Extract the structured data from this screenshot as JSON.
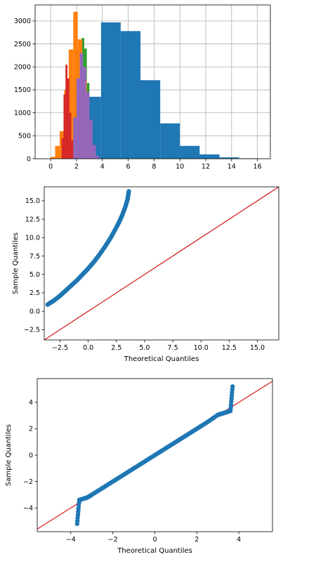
{
  "chart_data": [
    {
      "type": "bar",
      "title": "",
      "xlabel": "",
      "ylabel": "",
      "xlim": [
        -1.2,
        17.0
      ],
      "ylim": [
        0,
        3350
      ],
      "grid": true,
      "xticks": [
        0,
        2,
        4,
        6,
        8,
        10,
        12,
        14,
        16
      ],
      "xtick_labels": [
        "0",
        "2",
        "4",
        "6",
        "8",
        "10",
        "12",
        "14",
        "16"
      ],
      "yticks": [
        0,
        500,
        1000,
        1500,
        2000,
        2500,
        3000
      ],
      "ytick_labels": [
        "0",
        "500",
        "1000",
        "1500",
        "2000",
        "2500",
        "3000"
      ],
      "series": [
        {
          "color": "#1f77b4",
          "bins": [
            {
              "x0": 0.85,
              "x1": 2.37,
              "value": 160
            },
            {
              "x0": 2.37,
              "x1": 3.9,
              "value": 1350
            },
            {
              "x0": 3.9,
              "x1": 5.42,
              "value": 2970
            },
            {
              "x0": 5.42,
              "x1": 6.95,
              "value": 2780
            },
            {
              "x0": 6.95,
              "x1": 8.48,
              "value": 1710
            },
            {
              "x0": 8.48,
              "x1": 10.0,
              "value": 770
            },
            {
              "x0": 10.0,
              "x1": 11.53,
              "value": 280
            },
            {
              "x0": 11.53,
              "x1": 13.06,
              "value": 95
            },
            {
              "x0": 13.06,
              "x1": 14.58,
              "value": 30
            },
            {
              "x0": 14.58,
              "x1": 16.11,
              "value": 8
            }
          ]
        },
        {
          "color": "#2ca02c",
          "bins": [
            {
              "x0": 1.4,
              "x1": 1.6,
              "value": 150
            },
            {
              "x0": 1.6,
              "x1": 1.8,
              "value": 900
            },
            {
              "x0": 1.8,
              "x1": 2.0,
              "value": 1700
            },
            {
              "x0": 2.0,
              "x1": 2.2,
              "value": 2350
            },
            {
              "x0": 2.2,
              "x1": 2.4,
              "value": 2400
            },
            {
              "x0": 2.4,
              "x1": 2.6,
              "value": 2630
            },
            {
              "x0": 2.6,
              "x1": 2.8,
              "value": 2400
            },
            {
              "x0": 2.8,
              "x1": 3.0,
              "value": 1650
            },
            {
              "x0": 3.0,
              "x1": 3.2,
              "value": 700
            },
            {
              "x0": 3.2,
              "x1": 3.4,
              "value": 160
            }
          ]
        },
        {
          "color": "#ff7f0e",
          "bins": [
            {
              "x0": 0.0,
              "x1": 0.35,
              "value": 40
            },
            {
              "x0": 0.35,
              "x1": 0.7,
              "value": 280
            },
            {
              "x0": 0.7,
              "x1": 1.05,
              "value": 600
            },
            {
              "x0": 1.05,
              "x1": 1.4,
              "value": 1500
            },
            {
              "x0": 1.4,
              "x1": 1.75,
              "value": 2380
            },
            {
              "x0": 1.75,
              "x1": 2.1,
              "value": 3200
            },
            {
              "x0": 2.1,
              "x1": 2.45,
              "value": 2600
            },
            {
              "x0": 2.45,
              "x1": 2.8,
              "value": 1700
            },
            {
              "x0": 2.8,
              "x1": 3.15,
              "value": 600
            },
            {
              "x0": 3.15,
              "x1": 3.5,
              "value": 120
            }
          ]
        },
        {
          "color": "#d62728",
          "bins": [
            {
              "x0": 0.85,
              "x1": 1.0,
              "value": 450
            },
            {
              "x0": 1.0,
              "x1": 1.15,
              "value": 1400
            },
            {
              "x0": 1.15,
              "x1": 1.3,
              "value": 2050
            },
            {
              "x0": 1.3,
              "x1": 1.45,
              "value": 1750
            },
            {
              "x0": 1.45,
              "x1": 1.6,
              "value": 1000
            },
            {
              "x0": 1.6,
              "x1": 1.75,
              "value": 400
            },
            {
              "x0": 1.75,
              "x1": 1.9,
              "value": 80
            }
          ]
        },
        {
          "color": "#9467bd",
          "bins": [
            {
              "x0": 1.75,
              "x1": 2.0,
              "value": 900
            },
            {
              "x0": 2.0,
              "x1": 2.25,
              "value": 1750
            },
            {
              "x0": 2.25,
              "x1": 2.5,
              "value": 2300
            },
            {
              "x0": 2.5,
              "x1": 2.75,
              "value": 2000
            },
            {
              "x0": 2.75,
              "x1": 3.0,
              "value": 1450
            },
            {
              "x0": 3.0,
              "x1": 3.25,
              "value": 850
            },
            {
              "x0": 3.25,
              "x1": 3.5,
              "value": 300
            },
            {
              "x0": 3.5,
              "x1": 3.75,
              "value": 60
            }
          ]
        }
      ]
    },
    {
      "type": "scatter",
      "title": "",
      "xlabel": "Theoretical Quantiles",
      "ylabel": "Sample Quantiles",
      "xlim": [
        -3.9,
        16.9
      ],
      "ylim": [
        -3.9,
        16.9
      ],
      "grid": false,
      "xticks": [
        -2.5,
        0.0,
        2.5,
        5.0,
        7.5,
        10.0,
        12.5,
        15.0
      ],
      "xtick_labels": [
        "−2.5",
        "0.0",
        "2.5",
        "5.0",
        "7.5",
        "10.0",
        "12.5",
        "15.0"
      ],
      "yticks": [
        -2.5,
        0.0,
        2.5,
        5.0,
        7.5,
        10.0,
        12.5,
        15.0
      ],
      "ytick_labels": [
        "−2.5",
        "0.0",
        "2.5",
        "5.0",
        "7.5",
        "10.0",
        "12.5",
        "15.0"
      ],
      "reference_line": {
        "color": "#d62728",
        "from": [
          -3.9,
          -3.9
        ],
        "to": [
          16.9,
          16.9
        ]
      },
      "points": {
        "color": "#1f77b4",
        "x": [
          -3.6,
          -3.3,
          -3.0,
          -2.5,
          -2.0,
          -1.5,
          -1.0,
          -0.5,
          0.0,
          0.5,
          1.0,
          1.5,
          2.0,
          2.5,
          2.8,
          3.0,
          3.3,
          3.5,
          3.6
        ],
        "y": [
          0.9,
          1.2,
          1.5,
          2.1,
          2.8,
          3.5,
          4.2,
          5.0,
          5.8,
          6.7,
          7.7,
          8.8,
          10.0,
          11.4,
          12.3,
          13.0,
          14.2,
          15.3,
          16.3
        ]
      }
    },
    {
      "type": "scatter",
      "title": "",
      "xlabel": "Theoretical Quantiles",
      "ylabel": "Sample Quantiles",
      "xlim": [
        -5.6,
        5.6
      ],
      "ylim": [
        -5.8,
        5.8
      ],
      "grid": false,
      "xticks": [
        -4,
        -2,
        0,
        2,
        4
      ],
      "xtick_labels": [
        "−4",
        "−2",
        "0",
        "2",
        "4"
      ],
      "yticks": [
        -4,
        -2,
        0,
        2,
        4
      ],
      "ytick_labels": [
        "−4",
        "−2",
        "0",
        "2",
        "4"
      ],
      "reference_line": {
        "color": "#d62728",
        "from": [
          -5.6,
          -5.6
        ],
        "to": [
          5.6,
          5.6
        ]
      },
      "points": {
        "color": "#1f77b4",
        "x": [
          -3.6,
          -3.4,
          -3.2,
          -3.0,
          -2.5,
          -2.0,
          -1.5,
          -1.0,
          -0.5,
          0.0,
          0.5,
          1.0,
          1.5,
          2.0,
          2.5,
          3.0,
          3.2,
          3.4,
          3.6,
          3.7,
          -3.7
        ],
        "y": [
          -3.4,
          -3.3,
          -3.2,
          -3.0,
          -2.5,
          -2.0,
          -1.5,
          -1.0,
          -0.5,
          0.0,
          0.5,
          1.0,
          1.5,
          2.0,
          2.5,
          3.05,
          3.15,
          3.25,
          3.35,
          5.2,
          -5.2
        ]
      }
    }
  ]
}
